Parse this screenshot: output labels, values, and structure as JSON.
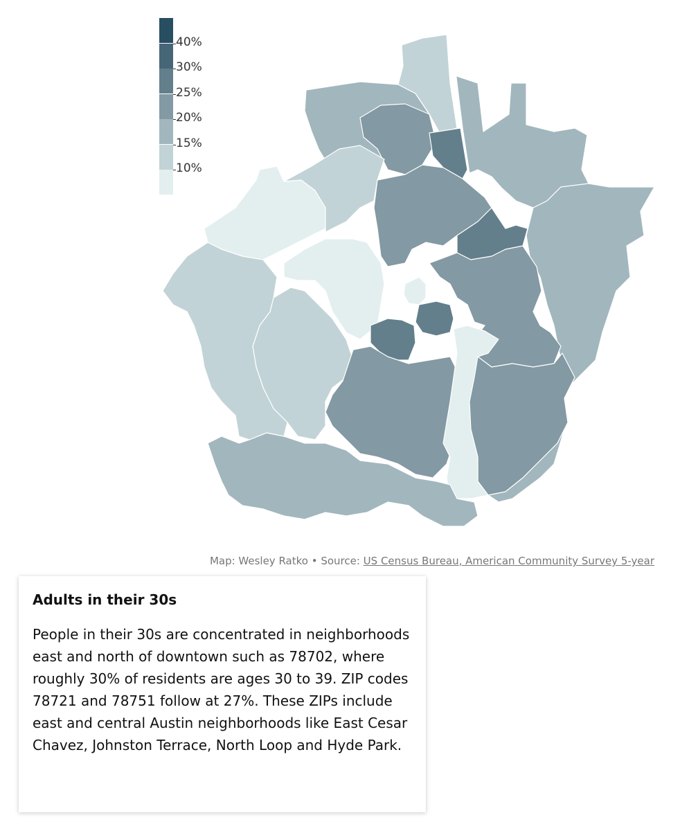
{
  "map": {
    "palette": {
      "lt10": "#e3eeef",
      "b10_15": "#c2d3d7",
      "b15_20": "#a2b6bd",
      "b20_25": "#8399a3",
      "b25_30": "#637f8b",
      "b30_40": "#466677",
      "gt40": "#284e62",
      "border": "#ffffff"
    },
    "legend": {
      "labels": [
        "40%",
        "30%",
        "25%",
        "20%",
        "15%",
        "10%"
      ],
      "colors": [
        "#284e62",
        "#466677",
        "#637f8b",
        "#8399a3",
        "#a2b6bd",
        "#c2d3d7",
        "#e3eeef"
      ]
    },
    "regions": [
      {
        "name": "northwest-zip",
        "class": "b15_20"
      },
      {
        "name": "north-spur-zip",
        "class": "b10_15"
      },
      {
        "name": "north-central-zip",
        "class": "b20_25"
      },
      {
        "name": "north-upper-zip",
        "class": "b25_30"
      },
      {
        "name": "northeast-large-zip",
        "class": "b15_20"
      },
      {
        "name": "far-east-zip",
        "class": "b15_20"
      },
      {
        "name": "west-lake-zip",
        "class": "lt10"
      },
      {
        "name": "west-hills-zip",
        "class": "b10_15"
      },
      {
        "name": "west-central-zip",
        "class": "lt10"
      },
      {
        "name": "northcentral-band-zip",
        "class": "b20_25"
      },
      {
        "name": "hyde-park-zip",
        "class": "b25_30"
      },
      {
        "name": "east-central-zip",
        "class": "b20_25"
      },
      {
        "name": "downtown-zip",
        "class": "lt10"
      },
      {
        "name": "east-cesar-chavez-zip",
        "class": "b25_30"
      },
      {
        "name": "zilker-zip",
        "class": "b25_30"
      },
      {
        "name": "southwest-zip",
        "class": "b10_15"
      },
      {
        "name": "south-central-zip",
        "class": "b20_25"
      },
      {
        "name": "southeast-airport-zip",
        "class": "b20_25"
      },
      {
        "name": "south-corridor-zip",
        "class": "lt10"
      },
      {
        "name": "south-large-zip",
        "class": "b15_20"
      },
      {
        "name": "southeast-large-zip",
        "class": "b15_20"
      },
      {
        "name": "far-west-zip",
        "class": "b10_15"
      }
    ]
  },
  "credit": {
    "prefix": "Map: Wesley Ratko • Source: ",
    "link_text": "US Census Bureau, American Community Survey 5-year"
  },
  "card": {
    "title": "Adults in their 30s",
    "body": "People in their 30s are concentrated in neighborhoods east and north of downtown such as 78702, where roughly 30% of residents are ages 30 to 39. ZIP codes 78721 and 78751 follow at 27%. These ZIPs include east and central Austin neighborhoods like East Cesar Chavez, Johnston Terrace, North Loop and Hyde Park."
  }
}
